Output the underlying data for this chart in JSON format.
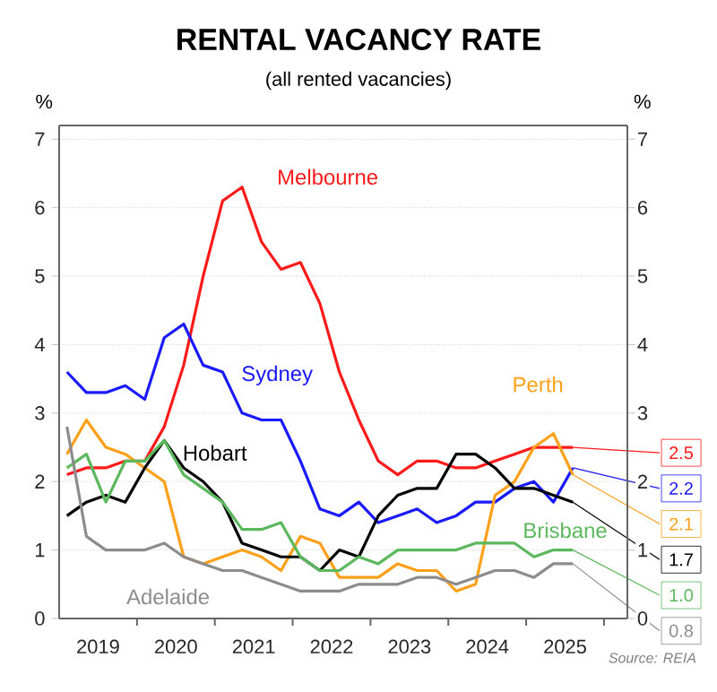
{
  "chart_data": {
    "type": "line",
    "title": "RENTAL VACANCY RATE",
    "subtitle": "(all rented vacancies)",
    "ylabel": "%",
    "y2label": "%",
    "annotations": [
      "Source: REIA"
    ],
    "x": [
      2019.1,
      2019.35,
      2019.6,
      2019.85,
      2020.1,
      2020.35,
      2020.6,
      2020.85,
      2021.1,
      2021.35,
      2021.6,
      2021.85,
      2022.1,
      2022.35,
      2022.6,
      2022.85,
      2023.1,
      2023.35,
      2023.6,
      2023.85,
      2024.1,
      2024.35,
      2024.6,
      2024.85,
      2025.1,
      2025.35,
      2025.6
    ],
    "series": [
      {
        "name": "Melbourne",
        "color": "#ff1a1a",
        "values": [
          2.1,
          2.2,
          2.2,
          2.3,
          2.3,
          2.8,
          3.7,
          5.0,
          6.1,
          6.3,
          5.5,
          5.1,
          5.2,
          4.6,
          3.6,
          2.9,
          2.3,
          2.1,
          2.3,
          2.3,
          2.2,
          2.2,
          2.3,
          2.4,
          2.5,
          2.5,
          2.5
        ],
        "value_labels": [
          null,
          null,
          null,
          null,
          null,
          null,
          null,
          null,
          null,
          null,
          null,
          null,
          null,
          null,
          null,
          null,
          null,
          null,
          null,
          null,
          null,
          null,
          null,
          null,
          null,
          null,
          "2.5"
        ]
      },
      {
        "name": "Sydney",
        "color": "#1a1aff",
        "values": [
          3.6,
          3.3,
          3.3,
          3.4,
          3.2,
          4.1,
          4.3,
          3.7,
          3.6,
          3.0,
          2.9,
          2.9,
          2.3,
          1.6,
          1.5,
          1.7,
          1.4,
          1.5,
          1.6,
          1.4,
          1.5,
          1.7,
          1.7,
          1.9,
          2.0,
          1.7,
          2.2
        ],
        "value_labels": [
          null,
          null,
          null,
          null,
          null,
          null,
          null,
          null,
          null,
          null,
          null,
          null,
          null,
          null,
          null,
          null,
          null,
          null,
          null,
          null,
          null,
          null,
          null,
          null,
          null,
          null,
          "2.2"
        ]
      },
      {
        "name": "Perth",
        "color": "#ffa01a",
        "values": [
          2.4,
          2.9,
          2.5,
          2.4,
          2.2,
          2.0,
          0.9,
          0.8,
          0.9,
          1.0,
          0.9,
          0.7,
          1.2,
          1.1,
          0.6,
          0.6,
          0.6,
          0.8,
          0.7,
          0.7,
          0.4,
          0.5,
          1.8,
          2.0,
          2.5,
          2.7,
          2.1
        ],
        "value_labels": [
          null,
          null,
          null,
          null,
          null,
          null,
          null,
          null,
          null,
          null,
          null,
          null,
          null,
          null,
          null,
          null,
          null,
          null,
          null,
          null,
          null,
          null,
          null,
          null,
          null,
          null,
          "2.1"
        ]
      },
      {
        "name": "Hobart",
        "color": "#000000",
        "values": [
          1.5,
          1.7,
          1.8,
          1.7,
          2.2,
          2.6,
          2.2,
          2.0,
          1.7,
          1.1,
          1.0,
          0.9,
          0.9,
          0.7,
          1.0,
          0.9,
          1.5,
          1.8,
          1.9,
          1.9,
          2.4,
          2.4,
          2.2,
          1.9,
          1.9,
          1.8,
          1.7
        ],
        "value_labels": [
          null,
          null,
          null,
          null,
          null,
          null,
          null,
          null,
          null,
          null,
          null,
          null,
          null,
          null,
          null,
          null,
          null,
          null,
          null,
          null,
          null,
          null,
          null,
          null,
          null,
          null,
          "1.7"
        ]
      },
      {
        "name": "Brisbane",
        "color": "#5cb85c",
        "values": [
          2.2,
          2.4,
          1.7,
          2.3,
          2.3,
          2.6,
          2.1,
          1.9,
          1.7,
          1.3,
          1.3,
          1.4,
          0.9,
          0.7,
          0.7,
          0.9,
          0.8,
          1.0,
          1.0,
          1.0,
          1.0,
          1.1,
          1.1,
          1.1,
          0.9,
          1.0,
          1.0
        ],
        "value_labels": [
          null,
          null,
          null,
          null,
          null,
          null,
          null,
          null,
          null,
          null,
          null,
          null,
          null,
          null,
          null,
          null,
          null,
          null,
          null,
          null,
          null,
          null,
          null,
          null,
          null,
          null,
          "1.0"
        ]
      },
      {
        "name": "Adelaide",
        "color": "#8c8c8c",
        "values": [
          2.8,
          1.2,
          1.0,
          1.0,
          1.0,
          1.1,
          0.9,
          0.8,
          0.7,
          0.7,
          0.6,
          0.5,
          0.4,
          0.4,
          0.4,
          0.5,
          0.5,
          0.5,
          0.6,
          0.6,
          0.5,
          0.6,
          0.7,
          0.7,
          0.6,
          0.8,
          0.8
        ],
        "value_labels": [
          null,
          null,
          null,
          null,
          null,
          null,
          null,
          null,
          null,
          null,
          null,
          null,
          null,
          null,
          null,
          null,
          null,
          null,
          null,
          null,
          null,
          null,
          null,
          null,
          null,
          null,
          "0.8"
        ]
      }
    ],
    "xlim": [
      2019.0,
      2026.3
    ],
    "xticks": [
      {
        "value": 2019.5,
        "label": "2019"
      },
      {
        "value": 2020.5,
        "label": "2020"
      },
      {
        "value": 2021.5,
        "label": "2021"
      },
      {
        "value": 2022.5,
        "label": "2022"
      },
      {
        "value": 2023.5,
        "label": "2023"
      },
      {
        "value": 2024.5,
        "label": "2024"
      },
      {
        "value": 2025.5,
        "label": "2025"
      },
      {
        "value": 2020,
        "label": null
      },
      {
        "value": 2021,
        "label": null
      },
      {
        "value": 2022,
        "label": null
      },
      {
        "value": 2023,
        "label": null
      },
      {
        "value": 2024,
        "label": null
      },
      {
        "value": 2025,
        "label": null
      },
      {
        "value": 2026,
        "label": null
      }
    ],
    "ylim": [
      0,
      7.2
    ],
    "yticks": [
      0,
      1,
      2,
      3,
      4,
      5,
      6,
      7
    ],
    "y2lim": [
      0,
      7.2
    ],
    "y2ticks": [
      0,
      1,
      2,
      3,
      4,
      5,
      6,
      7
    ],
    "grid": "y",
    "marker": "none",
    "line_style": "solid"
  }
}
